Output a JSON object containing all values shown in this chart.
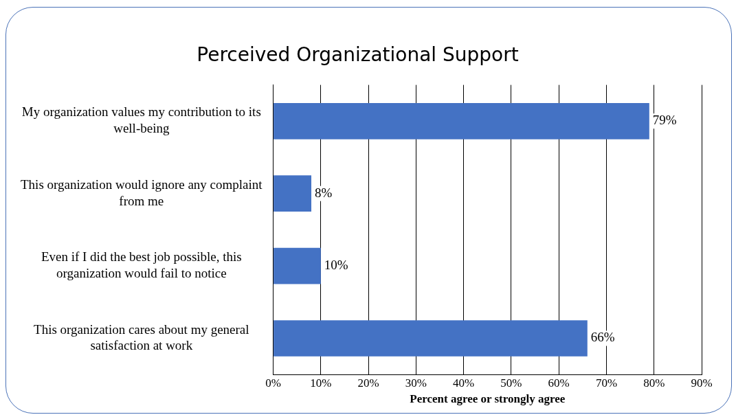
{
  "chart_data": {
    "type": "bar",
    "orientation": "horizontal",
    "title": "Perceived Organizational Support",
    "xlabel": "Percent agree or strongly agree",
    "categories": [
      "My organization values my contribution to its well-being",
      "This organization would ignore any complaint from me",
      "Even if I did the best job possible, this organization would fail to notice",
      "This organization cares about my general satisfaction at work"
    ],
    "values": [
      79,
      8,
      10,
      66
    ],
    "color": "#4472c4",
    "value_labels": [
      "79%",
      "8%",
      "10%",
      "66%"
    ],
    "xlim": [
      0,
      90
    ],
    "xticks": [
      {
        "value": 0,
        "label": "0%"
      },
      {
        "value": 10,
        "label": "10%"
      },
      {
        "value": 20,
        "label": "20%"
      },
      {
        "value": 30,
        "label": "30%"
      },
      {
        "value": 40,
        "label": "40%"
      },
      {
        "value": 50,
        "label": "50%"
      },
      {
        "value": 60,
        "label": "60%"
      },
      {
        "value": 70,
        "label": "70%"
      },
      {
        "value": 80,
        "label": "80%"
      },
      {
        "value": 90,
        "label": "90%"
      }
    ],
    "grid": "x",
    "legend": false
  }
}
